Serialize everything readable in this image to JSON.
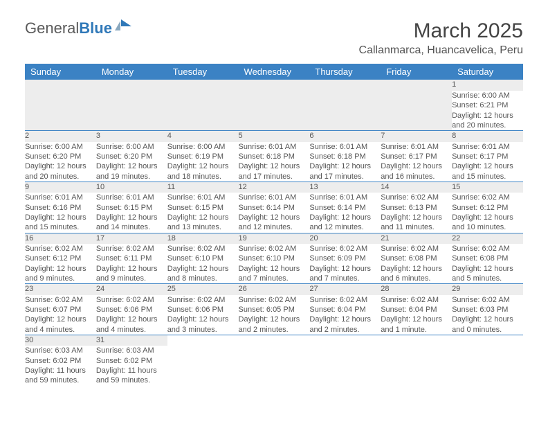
{
  "logo": {
    "text1": "General",
    "text2": "Blue"
  },
  "title": "March 2025",
  "location": "Callanmarca, Huancavelica, Peru",
  "colors": {
    "header_bg": "#3b82c4",
    "header_text": "#ffffff",
    "daynum_bg": "#ededed",
    "border": "#3b82c4",
    "text": "#555555",
    "logo_gray": "#5a5a5a",
    "logo_blue": "#2f78b8"
  },
  "day_headers": [
    "Sunday",
    "Monday",
    "Tuesday",
    "Wednesday",
    "Thursday",
    "Friday",
    "Saturday"
  ],
  "weeks": [
    [
      null,
      null,
      null,
      null,
      null,
      null,
      {
        "n": "1",
        "sr": "6:00 AM",
        "ss": "6:21 PM",
        "dl": "12 hours and 20 minutes."
      }
    ],
    [
      {
        "n": "2",
        "sr": "6:00 AM",
        "ss": "6:20 PM",
        "dl": "12 hours and 20 minutes."
      },
      {
        "n": "3",
        "sr": "6:00 AM",
        "ss": "6:20 PM",
        "dl": "12 hours and 19 minutes."
      },
      {
        "n": "4",
        "sr": "6:00 AM",
        "ss": "6:19 PM",
        "dl": "12 hours and 18 minutes."
      },
      {
        "n": "5",
        "sr": "6:01 AM",
        "ss": "6:18 PM",
        "dl": "12 hours and 17 minutes."
      },
      {
        "n": "6",
        "sr": "6:01 AM",
        "ss": "6:18 PM",
        "dl": "12 hours and 17 minutes."
      },
      {
        "n": "7",
        "sr": "6:01 AM",
        "ss": "6:17 PM",
        "dl": "12 hours and 16 minutes."
      },
      {
        "n": "8",
        "sr": "6:01 AM",
        "ss": "6:17 PM",
        "dl": "12 hours and 15 minutes."
      }
    ],
    [
      {
        "n": "9",
        "sr": "6:01 AM",
        "ss": "6:16 PM",
        "dl": "12 hours and 15 minutes."
      },
      {
        "n": "10",
        "sr": "6:01 AM",
        "ss": "6:15 PM",
        "dl": "12 hours and 14 minutes."
      },
      {
        "n": "11",
        "sr": "6:01 AM",
        "ss": "6:15 PM",
        "dl": "12 hours and 13 minutes."
      },
      {
        "n": "12",
        "sr": "6:01 AM",
        "ss": "6:14 PM",
        "dl": "12 hours and 12 minutes."
      },
      {
        "n": "13",
        "sr": "6:01 AM",
        "ss": "6:14 PM",
        "dl": "12 hours and 12 minutes."
      },
      {
        "n": "14",
        "sr": "6:02 AM",
        "ss": "6:13 PM",
        "dl": "12 hours and 11 minutes."
      },
      {
        "n": "15",
        "sr": "6:02 AM",
        "ss": "6:12 PM",
        "dl": "12 hours and 10 minutes."
      }
    ],
    [
      {
        "n": "16",
        "sr": "6:02 AM",
        "ss": "6:12 PM",
        "dl": "12 hours and 9 minutes."
      },
      {
        "n": "17",
        "sr": "6:02 AM",
        "ss": "6:11 PM",
        "dl": "12 hours and 9 minutes."
      },
      {
        "n": "18",
        "sr": "6:02 AM",
        "ss": "6:10 PM",
        "dl": "12 hours and 8 minutes."
      },
      {
        "n": "19",
        "sr": "6:02 AM",
        "ss": "6:10 PM",
        "dl": "12 hours and 7 minutes."
      },
      {
        "n": "20",
        "sr": "6:02 AM",
        "ss": "6:09 PM",
        "dl": "12 hours and 7 minutes."
      },
      {
        "n": "21",
        "sr": "6:02 AM",
        "ss": "6:08 PM",
        "dl": "12 hours and 6 minutes."
      },
      {
        "n": "22",
        "sr": "6:02 AM",
        "ss": "6:08 PM",
        "dl": "12 hours and 5 minutes."
      }
    ],
    [
      {
        "n": "23",
        "sr": "6:02 AM",
        "ss": "6:07 PM",
        "dl": "12 hours and 4 minutes."
      },
      {
        "n": "24",
        "sr": "6:02 AM",
        "ss": "6:06 PM",
        "dl": "12 hours and 4 minutes."
      },
      {
        "n": "25",
        "sr": "6:02 AM",
        "ss": "6:06 PM",
        "dl": "12 hours and 3 minutes."
      },
      {
        "n": "26",
        "sr": "6:02 AM",
        "ss": "6:05 PM",
        "dl": "12 hours and 2 minutes."
      },
      {
        "n": "27",
        "sr": "6:02 AM",
        "ss": "6:04 PM",
        "dl": "12 hours and 2 minutes."
      },
      {
        "n": "28",
        "sr": "6:02 AM",
        "ss": "6:04 PM",
        "dl": "12 hours and 1 minute."
      },
      {
        "n": "29",
        "sr": "6:02 AM",
        "ss": "6:03 PM",
        "dl": "12 hours and 0 minutes."
      }
    ],
    [
      {
        "n": "30",
        "sr": "6:03 AM",
        "ss": "6:02 PM",
        "dl": "11 hours and 59 minutes."
      },
      {
        "n": "31",
        "sr": "6:03 AM",
        "ss": "6:02 PM",
        "dl": "11 hours and 59 minutes."
      },
      null,
      null,
      null,
      null,
      null
    ]
  ],
  "labels": {
    "sunrise": "Sunrise:",
    "sunset": "Sunset:",
    "daylight": "Daylight:"
  }
}
